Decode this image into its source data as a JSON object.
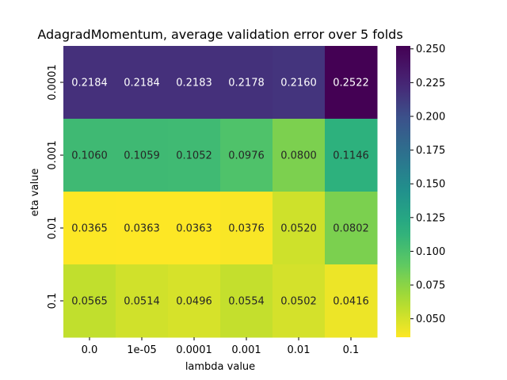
{
  "chart_data": {
    "type": "heatmap",
    "title": "AdagradMomentum, average validation error over 5 folds",
    "xlabel": "lambda value",
    "ylabel": "eta value",
    "x_categories": [
      "0.0",
      "1e-05",
      "0.0001",
      "0.001",
      "0.01",
      "0.1"
    ],
    "y_categories": [
      "0.0001",
      "0.001",
      "0.01",
      "0.1"
    ],
    "values": [
      [
        0.2184,
        0.2184,
        0.2183,
        0.2178,
        0.216,
        0.2522
      ],
      [
        0.106,
        0.1059,
        0.1052,
        0.0976,
        0.08,
        0.1146
      ],
      [
        0.0365,
        0.0363,
        0.0363,
        0.0376,
        0.052,
        0.0802
      ],
      [
        0.0565,
        0.0514,
        0.0496,
        0.0554,
        0.0502,
        0.0416
      ]
    ],
    "value_labels": [
      [
        "0.2184",
        "0.2184",
        "0.2183",
        "0.2178",
        "0.2160",
        "0.2522"
      ],
      [
        "0.1060",
        "0.1059",
        "0.1052",
        "0.0976",
        "0.0800",
        "0.1146"
      ],
      [
        "0.0365",
        "0.0363",
        "0.0363",
        "0.0376",
        "0.0520",
        "0.0802"
      ],
      [
        "0.0565",
        "0.0514",
        "0.0496",
        "0.0554",
        "0.0502",
        "0.0416"
      ]
    ],
    "colormap": "viridis_r",
    "vmin": 0.0363,
    "vmax": 0.2522,
    "colorbar_ticks": [
      "0.050",
      "0.075",
      "0.100",
      "0.125",
      "0.150",
      "0.175",
      "0.200",
      "0.225",
      "0.250"
    ]
  }
}
